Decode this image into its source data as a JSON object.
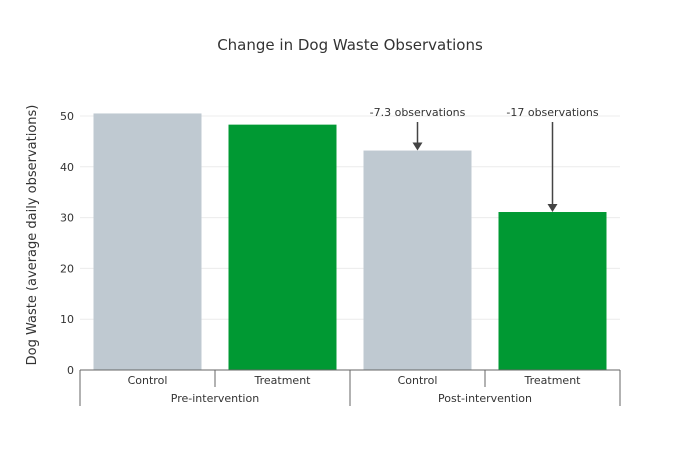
{
  "chart_data": {
    "type": "bar",
    "title": "Change in Dog Waste Observations",
    "xlabel": "",
    "ylabel": "Dog Waste (average daily observations)",
    "ylim": [
      0,
      50
    ],
    "yticks": [
      0,
      10,
      20,
      30,
      40,
      50
    ],
    "grid": true,
    "legend": "none",
    "categories": [
      "Control",
      "Treatment",
      "Control",
      "Treatment"
    ],
    "groups": [
      {
        "label": "Pre-intervention",
        "bars": [
          0,
          1
        ]
      },
      {
        "label": "Post-intervention",
        "bars": [
          2,
          3
        ]
      }
    ],
    "values": [
      50.5,
      48.3,
      43.2,
      31.1
    ],
    "colors": [
      "#bfc9d1",
      "#009933",
      "#bfc9d1",
      "#009933"
    ],
    "annotations": [
      {
        "bar": 2,
        "text": "-7.3 observations"
      },
      {
        "bar": 3,
        "text": "-17 observations"
      }
    ]
  }
}
